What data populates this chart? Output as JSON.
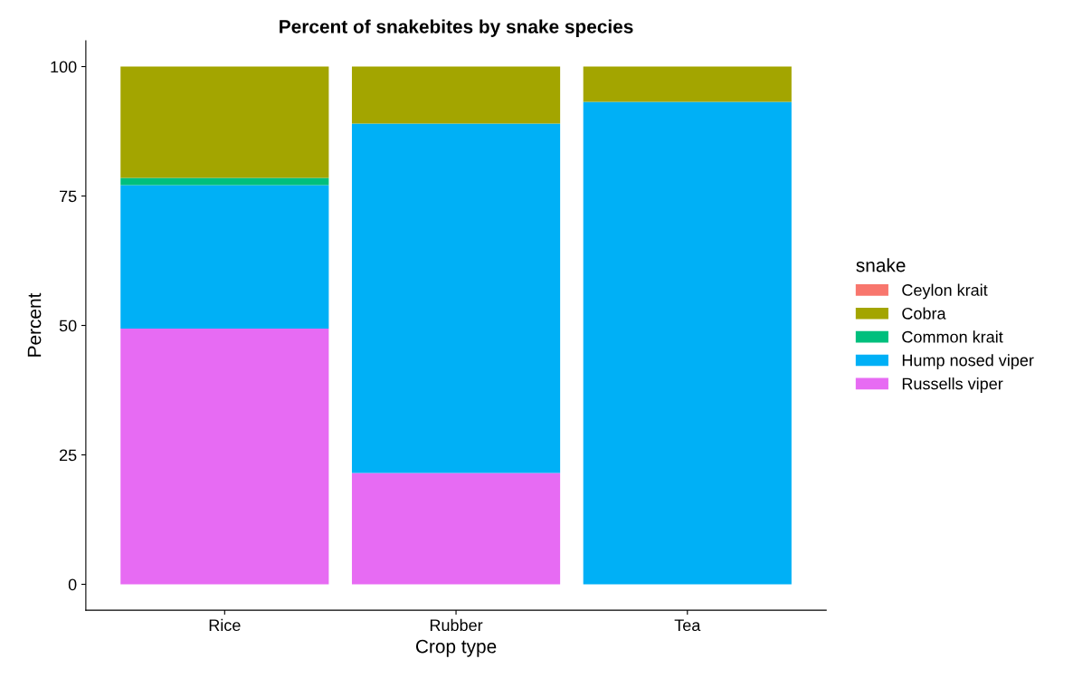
{
  "chart_data": {
    "type": "bar",
    "stacked": true,
    "title": "Percent of snakebites by snake species",
    "xlabel": "Crop type",
    "ylabel": "Percent",
    "legend_title": "snake",
    "legend": "right",
    "categories": [
      "Rice",
      "Rubber",
      "Tea"
    ],
    "series": [
      {
        "name": "Russells viper",
        "color": "#e76bf3",
        "values": [
          49.4,
          21.5,
          0
        ]
      },
      {
        "name": "Hump nosed viper",
        "color": "#00b0f6",
        "values": [
          27.7,
          67.5,
          93.2
        ]
      },
      {
        "name": "Common krait",
        "color": "#00bf7d",
        "values": [
          1.4,
          0,
          0
        ]
      },
      {
        "name": "Cobra",
        "color": "#a3a500",
        "values": [
          21.5,
          11.0,
          6.8
        ]
      },
      {
        "name": "Ceylon krait",
        "color": "#f8766d",
        "values": [
          0,
          0,
          0
        ]
      }
    ],
    "ylim": [
      -5,
      105
    ],
    "yticks": [
      0,
      25,
      50,
      75,
      100
    ],
    "grid": false
  }
}
